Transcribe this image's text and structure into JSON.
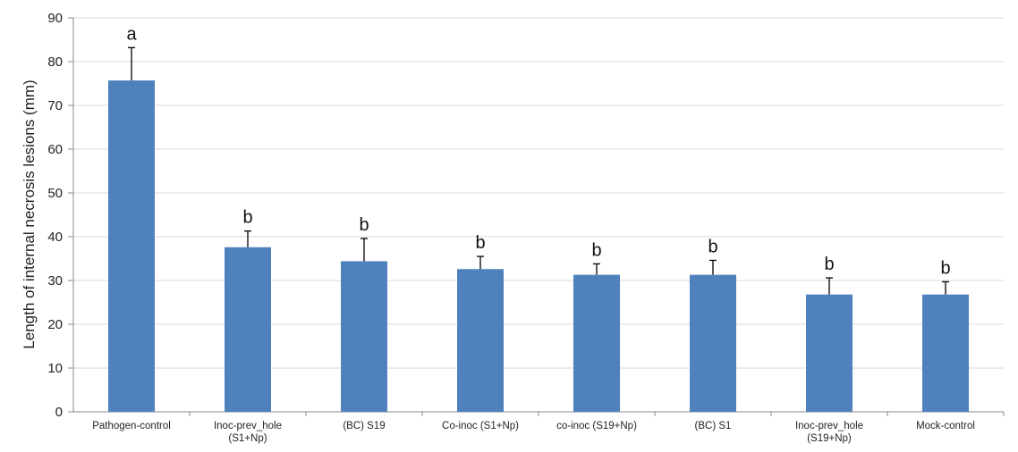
{
  "chart_data": {
    "type": "bar",
    "ylabel": "Length of internal necrosis lesions (mm)",
    "xlabel": "",
    "title": "",
    "ylim": [
      0,
      90
    ],
    "yticks": [
      0,
      10,
      20,
      30,
      40,
      50,
      60,
      70,
      80,
      90
    ],
    "grid": true,
    "legend": "none",
    "bar_color": "#4f81bd",
    "categories": [
      [
        "Pathogen-control"
      ],
      [
        "Inoc-prev_hole",
        "(S1+Np)"
      ],
      [
        "(BC) S19"
      ],
      [
        "Co-inoc (S1+Np)"
      ],
      [
        "co-inoc (S19+Np)"
      ],
      [
        "(BC) S1"
      ],
      [
        "Inoc-prev_hole",
        "(S19+Np)"
      ],
      [
        "Mock-control"
      ]
    ],
    "values": [
      75.7,
      37.6,
      34.4,
      32.6,
      31.3,
      31.3,
      26.8,
      26.8
    ],
    "error_upper": [
      83.2,
      41.3,
      39.6,
      35.5,
      33.8,
      34.6,
      30.6,
      29.7
    ],
    "significance": [
      "a",
      "b",
      "b",
      "b",
      "b",
      "b",
      "b",
      "b"
    ]
  }
}
